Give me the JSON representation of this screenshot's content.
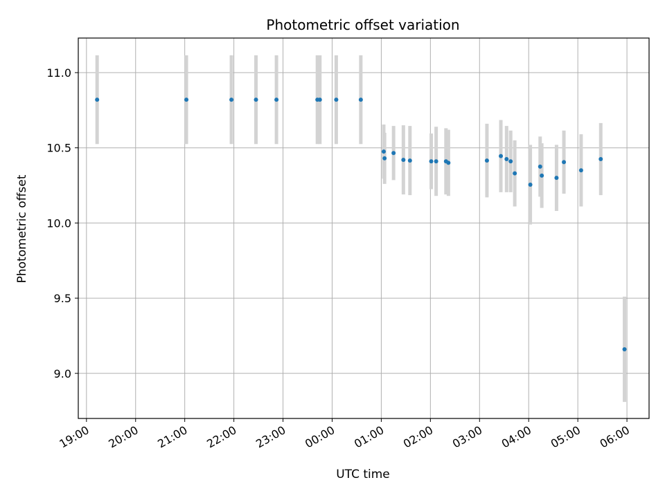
{
  "chart_data": {
    "type": "scatter",
    "title": "Photometric offset variation",
    "xlabel": "UTC time",
    "ylabel": "Photometric offset",
    "xlim": [
      "18:50",
      "06:27"
    ],
    "ylim": [
      8.7,
      11.23
    ],
    "grid": true,
    "x_ticks": [
      "19:00",
      "20:00",
      "21:00",
      "22:00",
      "23:00",
      "00:00",
      "01:00",
      "02:00",
      "03:00",
      "04:00",
      "05:00",
      "06:00"
    ],
    "y_ticks": [
      9.0,
      9.5,
      10.0,
      10.5,
      11.0
    ],
    "point_color": "#1f77b4",
    "errorbar_color": "#d3d3d3",
    "points": [
      {
        "t": "19:13",
        "y": 10.82,
        "err": 0.295
      },
      {
        "t": "21:02",
        "y": 10.82,
        "err": 0.295
      },
      {
        "t": "21:57",
        "y": 10.82,
        "err": 0.295
      },
      {
        "t": "22:27",
        "y": 10.82,
        "err": 0.295
      },
      {
        "t": "22:52",
        "y": 10.82,
        "err": 0.295
      },
      {
        "t": "23:42",
        "y": 10.82,
        "err": 0.295
      },
      {
        "t": "23:45",
        "y": 10.82,
        "err": 0.295
      },
      {
        "t": "00:05",
        "y": 10.82,
        "err": 0.295
      },
      {
        "t": "00:35",
        "y": 10.82,
        "err": 0.295
      },
      {
        "t": "01:03",
        "y": 10.475,
        "err": 0.18
      },
      {
        "t": "01:04",
        "y": 10.43,
        "err": 0.17
      },
      {
        "t": "01:15",
        "y": 10.465,
        "err": 0.18
      },
      {
        "t": "01:27",
        "y": 10.42,
        "err": 0.23
      },
      {
        "t": "01:35",
        "y": 10.415,
        "err": 0.23
      },
      {
        "t": "02:01",
        "y": 10.41,
        "err": 0.185
      },
      {
        "t": "02:07",
        "y": 10.41,
        "err": 0.23
      },
      {
        "t": "02:19",
        "y": 10.41,
        "err": 0.22
      },
      {
        "t": "02:22",
        "y": 10.4,
        "err": 0.22
      },
      {
        "t": "03:09",
        "y": 10.415,
        "err": 0.245
      },
      {
        "t": "03:26",
        "y": 10.445,
        "err": 0.24
      },
      {
        "t": "03:33",
        "y": 10.425,
        "err": 0.22
      },
      {
        "t": "03:38",
        "y": 10.41,
        "err": 0.205
      },
      {
        "t": "03:43",
        "y": 10.33,
        "err": 0.22
      },
      {
        "t": "04:02",
        "y": 10.255,
        "err": 0.265
      },
      {
        "t": "04:14",
        "y": 10.375,
        "err": 0.2
      },
      {
        "t": "04:16",
        "y": 10.315,
        "err": 0.215
      },
      {
        "t": "04:34",
        "y": 10.3,
        "err": 0.22
      },
      {
        "t": "04:43",
        "y": 10.405,
        "err": 0.21
      },
      {
        "t": "05:04",
        "y": 10.35,
        "err": 0.24
      },
      {
        "t": "05:28",
        "y": 10.425,
        "err": 0.24
      },
      {
        "t": "05:57",
        "y": 9.16,
        "err": 0.35
      }
    ]
  }
}
